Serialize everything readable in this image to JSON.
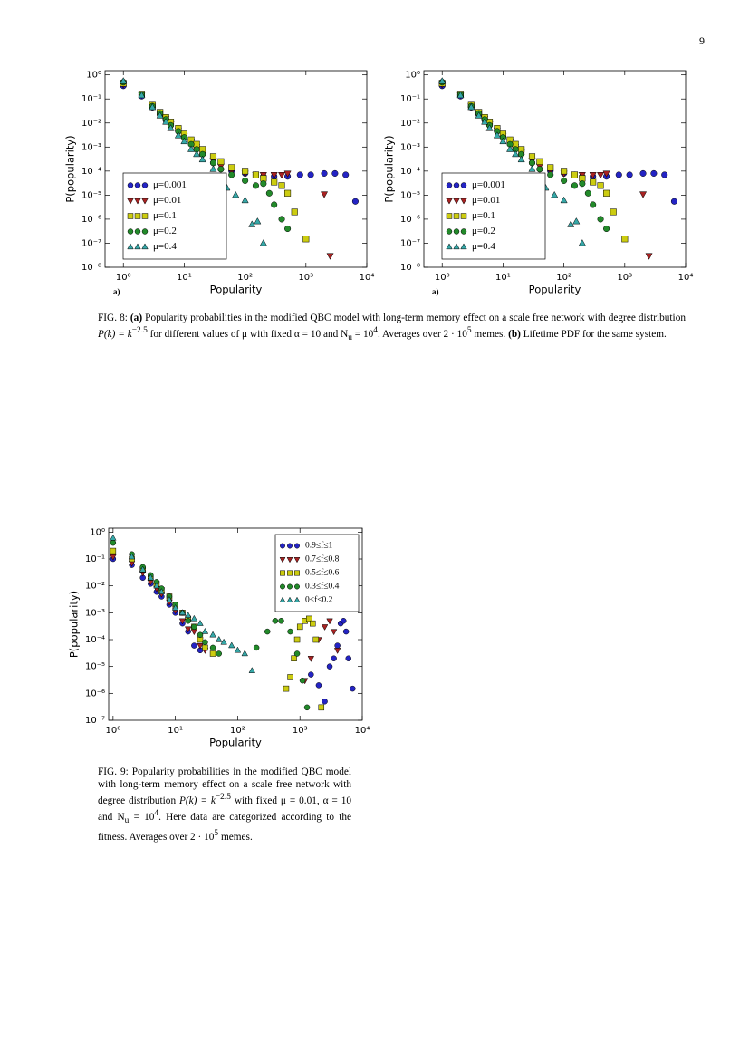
{
  "page_number": "9",
  "chart_data": [
    {
      "type": "scatter",
      "log_x": true,
      "log_y": true,
      "xlabel": "Popularity",
      "ylabel": "P(popularity)",
      "panel_label": "a)",
      "legend": "lower left",
      "xlim": [
        0.5,
        10000
      ],
      "ylim": [
        1e-08,
        1.5
      ],
      "xticks": [
        {
          "value": 1,
          "label": "10⁰"
        },
        {
          "value": 10,
          "label": "10¹"
        },
        {
          "value": 100,
          "label": "10²"
        },
        {
          "value": 1000,
          "label": "10³"
        },
        {
          "value": 10000,
          "label": "10⁴"
        }
      ],
      "yticks": [
        {
          "value": 1,
          "label": "10⁰"
        },
        {
          "value": 0.1,
          "label": "10⁻¹"
        },
        {
          "value": 0.01,
          "label": "10⁻²"
        },
        {
          "value": 0.001,
          "label": "10⁻³"
        },
        {
          "value": 0.0001,
          "label": "10⁻⁴"
        },
        {
          "value": 1e-05,
          "label": "10⁻⁵"
        },
        {
          "value": 1e-06,
          "label": "10⁻⁶"
        },
        {
          "value": 1e-07,
          "label": "10⁻⁷"
        },
        {
          "value": 1e-08,
          "label": "10⁻⁸"
        }
      ],
      "series": [
        {
          "name": "μ=0.001",
          "color": "#2424c4",
          "marker": "circle",
          "x": [
            1,
            2,
            3,
            4,
            5,
            6,
            8,
            10,
            13,
            16,
            20,
            30,
            40,
            60,
            100,
            150,
            200,
            300,
            500,
            800,
            1200,
            2000,
            3000,
            4500,
            6500
          ],
          "values": [
            0.35,
            0.13,
            0.045,
            0.022,
            0.013,
            0.008,
            0.0045,
            0.0028,
            0.0015,
            0.0009,
            0.0005,
            0.00022,
            0.00012,
            0.0001,
            8e-05,
            7e-05,
            6e-05,
            6e-05,
            6e-05,
            7e-05,
            7e-05,
            8e-05,
            8e-05,
            7e-05,
            5.5e-06
          ]
        },
        {
          "name": "μ=0.01",
          "color": "#a82222",
          "marker": "triangle-down",
          "x": [
            1,
            2,
            3,
            4,
            5,
            6,
            8,
            10,
            13,
            16,
            20,
            30,
            40,
            60,
            100,
            150,
            200,
            300,
            400,
            500,
            2000,
            2500
          ],
          "values": [
            0.4,
            0.15,
            0.05,
            0.025,
            0.015,
            0.009,
            0.005,
            0.003,
            0.0017,
            0.001,
            0.0006,
            0.00028,
            0.00016,
            0.0001,
            8e-05,
            7e-05,
            7e-05,
            7e-05,
            7e-05,
            8e-05,
            1.1e-05,
            3e-08
          ]
        },
        {
          "name": "μ=0.1",
          "color": "#cccc10",
          "marker": "square",
          "x": [
            1,
            2,
            3,
            4,
            5,
            6,
            8,
            10,
            13,
            16,
            20,
            30,
            40,
            60,
            100,
            150,
            200,
            300,
            400,
            500,
            650,
            1000
          ],
          "values": [
            0.45,
            0.16,
            0.055,
            0.028,
            0.017,
            0.011,
            0.006,
            0.0035,
            0.002,
            0.0013,
            0.0008,
            0.0004,
            0.00025,
            0.00014,
            0.0001,
            7e-05,
            5e-05,
            3.5e-05,
            2.5e-05,
            1.2e-05,
            2e-06,
            1.5e-07
          ]
        },
        {
          "name": "μ=0.2",
          "color": "#228a2a",
          "marker": "circle",
          "x": [
            1,
            2,
            3,
            4,
            5,
            6,
            8,
            10,
            13,
            16,
            20,
            30,
            40,
            60,
            100,
            150,
            200,
            250,
            300,
            400,
            500
          ],
          "values": [
            0.5,
            0.15,
            0.05,
            0.025,
            0.014,
            0.008,
            0.0045,
            0.0025,
            0.0013,
            0.0008,
            0.0005,
            0.00022,
            0.00012,
            7e-05,
            4e-05,
            2.5e-05,
            3e-05,
            1.2e-05,
            4e-06,
            1e-06,
            4e-07
          ]
        },
        {
          "name": "μ=0.4",
          "color": "#36a8a8",
          "marker": "triangle-up",
          "x": [
            1,
            2,
            3,
            4,
            5,
            6,
            8,
            10,
            13,
            16,
            20,
            30,
            40,
            50,
            70,
            100,
            130,
            160,
            200
          ],
          "values": [
            0.55,
            0.14,
            0.045,
            0.02,
            0.011,
            0.006,
            0.003,
            0.0017,
            0.0008,
            0.0005,
            0.0003,
            0.00012,
            4e-05,
            2e-05,
            1e-05,
            6e-06,
            6e-07,
            8e-07,
            1e-07
          ]
        }
      ]
    },
    {
      "type": "scatter",
      "log_x": true,
      "log_y": true,
      "xlabel": "Popularity",
      "ylabel": "P(popularity)",
      "panel_label": "a)",
      "legend": "lower left",
      "xlim": [
        0.5,
        10000
      ],
      "ylim": [
        1e-08,
        1.5
      ],
      "xticks": [
        {
          "value": 1,
          "label": "10⁰"
        },
        {
          "value": 10,
          "label": "10¹"
        },
        {
          "value": 100,
          "label": "10²"
        },
        {
          "value": 1000,
          "label": "10³"
        },
        {
          "value": 10000,
          "label": "10⁴"
        }
      ],
      "yticks": [
        {
          "value": 1,
          "label": "10⁰"
        },
        {
          "value": 0.1,
          "label": "10⁻¹"
        },
        {
          "value": 0.01,
          "label": "10⁻²"
        },
        {
          "value": 0.001,
          "label": "10⁻³"
        },
        {
          "value": 0.0001,
          "label": "10⁻⁴"
        },
        {
          "value": 1e-05,
          "label": "10⁻⁵"
        },
        {
          "value": 1e-06,
          "label": "10⁻⁶"
        },
        {
          "value": 1e-07,
          "label": "10⁻⁷"
        },
        {
          "value": 1e-08,
          "label": "10⁻⁸"
        }
      ],
      "series": [
        {
          "name": "μ=0.001",
          "color": "#2424c4",
          "marker": "circle",
          "x": [
            1,
            2,
            3,
            4,
            5,
            6,
            8,
            10,
            13,
            16,
            20,
            30,
            40,
            60,
            100,
            150,
            200,
            300,
            500,
            800,
            1200,
            2000,
            3000,
            4500,
            6500
          ],
          "values": [
            0.35,
            0.13,
            0.045,
            0.022,
            0.013,
            0.008,
            0.0045,
            0.0028,
            0.0015,
            0.0009,
            0.0005,
            0.00022,
            0.00012,
            0.0001,
            8e-05,
            7e-05,
            6e-05,
            6e-05,
            6e-05,
            7e-05,
            7e-05,
            8e-05,
            8e-05,
            7e-05,
            5.5e-06
          ]
        },
        {
          "name": "μ=0.01",
          "color": "#a82222",
          "marker": "triangle-down",
          "x": [
            1,
            2,
            3,
            4,
            5,
            6,
            8,
            10,
            13,
            16,
            20,
            30,
            40,
            60,
            100,
            150,
            200,
            300,
            400,
            500,
            2000,
            2500
          ],
          "values": [
            0.4,
            0.15,
            0.05,
            0.025,
            0.015,
            0.009,
            0.005,
            0.003,
            0.0017,
            0.001,
            0.0006,
            0.00028,
            0.00016,
            0.0001,
            8e-05,
            7e-05,
            7e-05,
            7e-05,
            7e-05,
            8e-05,
            1.1e-05,
            3e-08
          ]
        },
        {
          "name": "μ=0.1",
          "color": "#cccc10",
          "marker": "square",
          "x": [
            1,
            2,
            3,
            4,
            5,
            6,
            8,
            10,
            13,
            16,
            20,
            30,
            40,
            60,
            100,
            150,
            200,
            300,
            400,
            500,
            650,
            1000
          ],
          "values": [
            0.45,
            0.16,
            0.055,
            0.028,
            0.017,
            0.011,
            0.006,
            0.0035,
            0.002,
            0.0013,
            0.0008,
            0.0004,
            0.00025,
            0.00014,
            0.0001,
            7e-05,
            5e-05,
            3.5e-05,
            2.5e-05,
            1.2e-05,
            2e-06,
            1.5e-07
          ]
        },
        {
          "name": "μ=0.2",
          "color": "#228a2a",
          "marker": "circle",
          "x": [
            1,
            2,
            3,
            4,
            5,
            6,
            8,
            10,
            13,
            16,
            20,
            30,
            40,
            60,
            100,
            150,
            200,
            250,
            300,
            400,
            500
          ],
          "values": [
            0.5,
            0.15,
            0.05,
            0.025,
            0.014,
            0.008,
            0.0045,
            0.0025,
            0.0013,
            0.0008,
            0.0005,
            0.00022,
            0.00012,
            7e-05,
            4e-05,
            2.5e-05,
            3e-05,
            1.2e-05,
            4e-06,
            1e-06,
            4e-07
          ]
        },
        {
          "name": "μ=0.4",
          "color": "#36a8a8",
          "marker": "triangle-up",
          "x": [
            1,
            2,
            3,
            4,
            5,
            6,
            8,
            10,
            13,
            16,
            20,
            30,
            40,
            50,
            70,
            100,
            130,
            160,
            200
          ],
          "values": [
            0.55,
            0.14,
            0.045,
            0.02,
            0.011,
            0.006,
            0.003,
            0.0017,
            0.0008,
            0.0005,
            0.0003,
            0.00012,
            4e-05,
            2e-05,
            1e-05,
            6e-06,
            6e-07,
            8e-07,
            1e-07
          ]
        }
      ]
    },
    {
      "type": "scatter",
      "log_x": true,
      "log_y": true,
      "xlabel": "Popularity",
      "ylabel": "P(popularity)",
      "legend": "upper right",
      "xlim": [
        0.85,
        10000
      ],
      "ylim": [
        1e-07,
        1.4
      ],
      "xticks": [
        {
          "value": 1,
          "label": "10⁰"
        },
        {
          "value": 10,
          "label": "10¹"
        },
        {
          "value": 100,
          "label": "10²"
        },
        {
          "value": 1000,
          "label": "10³"
        },
        {
          "value": 10000,
          "label": "10⁴"
        }
      ],
      "yticks": [
        {
          "value": 1,
          "label": "10⁰"
        },
        {
          "value": 0.1,
          "label": "10⁻¹"
        },
        {
          "value": 0.01,
          "label": "10⁻²"
        },
        {
          "value": 0.001,
          "label": "10⁻³"
        },
        {
          "value": 0.0001,
          "label": "10⁻⁴"
        },
        {
          "value": 1e-05,
          "label": "10⁻⁵"
        },
        {
          "value": 1e-06,
          "label": "10⁻⁶"
        },
        {
          "value": 1e-07,
          "label": "10⁻⁷"
        }
      ],
      "series": [
        {
          "name": "0.9≤f≤1",
          "color": "#2424c4",
          "marker": "circle",
          "x": [
            1,
            2,
            3,
            4,
            5,
            6,
            8,
            10,
            13,
            16,
            20,
            25,
            1500,
            2000,
            2500,
            3000,
            3500,
            4000,
            4500,
            5000,
            5500,
            6000,
            7000
          ],
          "values": [
            0.1,
            0.06,
            0.02,
            0.012,
            0.006,
            0.004,
            0.002,
            0.001,
            0.0004,
            0.0002,
            6e-05,
            4e-05,
            5e-06,
            2e-06,
            5e-07,
            1e-05,
            2e-05,
            6e-05,
            0.0004,
            0.0005,
            0.0002,
            2e-05,
            1.5e-06
          ]
        },
        {
          "name": "0.7≤f≤0.8",
          "color": "#a82222",
          "marker": "triangle-down",
          "x": [
            1,
            2,
            3,
            4,
            5,
            6,
            8,
            10,
            13,
            16,
            20,
            25,
            30,
            1200,
            1500,
            2000,
            2500,
            3000,
            3500,
            4000
          ],
          "values": [
            0.12,
            0.07,
            0.03,
            0.014,
            0.008,
            0.005,
            0.0025,
            0.0012,
            0.0005,
            0.00025,
            0.0002,
            6e-05,
            4e-05,
            3e-06,
            2e-05,
            0.0001,
            0.0003,
            0.0005,
            0.0002,
            4e-05
          ]
        },
        {
          "name": "0.5≤f≤0.6",
          "color": "#cccc10",
          "marker": "square",
          "x": [
            1,
            2,
            3,
            4,
            5,
            6,
            8,
            10,
            13,
            16,
            20,
            25,
            30,
            40,
            600,
            700,
            800,
            900,
            1000,
            1200,
            1400,
            1600,
            1800,
            2200
          ],
          "values": [
            0.2,
            0.1,
            0.04,
            0.02,
            0.012,
            0.007,
            0.004,
            0.002,
            0.001,
            0.0006,
            0.0003,
            0.0001,
            5e-05,
            3e-05,
            1.5e-06,
            4e-06,
            2e-05,
            0.0001,
            0.0003,
            0.0005,
            0.0006,
            0.0004,
            0.0001,
            3e-07
          ]
        },
        {
          "name": "0.3≤f≤0.4",
          "color": "#228a2a",
          "marker": "circle",
          "x": [
            1,
            2,
            3,
            4,
            5,
            6,
            8,
            10,
            13,
            16,
            20,
            25,
            30,
            40,
            50,
            200,
            300,
            400,
            500,
            700,
            900,
            1100,
            1300
          ],
          "values": [
            0.4,
            0.15,
            0.05,
            0.025,
            0.014,
            0.008,
            0.004,
            0.002,
            0.001,
            0.0005,
            0.0003,
            0.00015,
            8e-05,
            5e-05,
            3e-05,
            5e-05,
            0.0002,
            0.0005,
            0.0005,
            0.0002,
            3e-05,
            3e-06,
            3e-07
          ]
        },
        {
          "name": "0<f≤0.2",
          "color": "#36a8a8",
          "marker": "triangle-up",
          "x": [
            1,
            2,
            3,
            4,
            5,
            6,
            8,
            10,
            13,
            16,
            20,
            25,
            30,
            40,
            50,
            60,
            80,
            100,
            130,
            170
          ],
          "values": [
            0.6,
            0.12,
            0.04,
            0.02,
            0.01,
            0.006,
            0.003,
            0.0015,
            0.001,
            0.0008,
            0.0006,
            0.0004,
            0.0002,
            0.00015,
            0.0001,
            8e-05,
            6e-05,
            4e-05,
            3e-05,
            7e-06
          ]
        }
      ]
    }
  ],
  "captions": [
    [
      "FIG. 8: ",
      "(a)",
      " Popularity probabilities in the modified QBC model with long-term memory effect on a scale free network with degree distribution ",
      "P(k) = k",
      "−2.5",
      " for different values of μ with fixed α = 10 and N",
      "u",
      " = 10",
      "4",
      ". Averages over 2 · 10",
      "5",
      " memes. ",
      "(b)",
      " Lifetime PDF for the same system."
    ],
    [
      "FIG. 9: Popularity probabilities in the modified QBC model with long-term memory effect on a scale free network with degree distribution ",
      "P(k) = k",
      "−2.5",
      " with fixed μ = 0.01, α = 10 and N",
      "u",
      " = 10",
      "4",
      ". Here data are categorized according to the fitness. Averages over 2 · 10",
      "5",
      " memes."
    ]
  ]
}
